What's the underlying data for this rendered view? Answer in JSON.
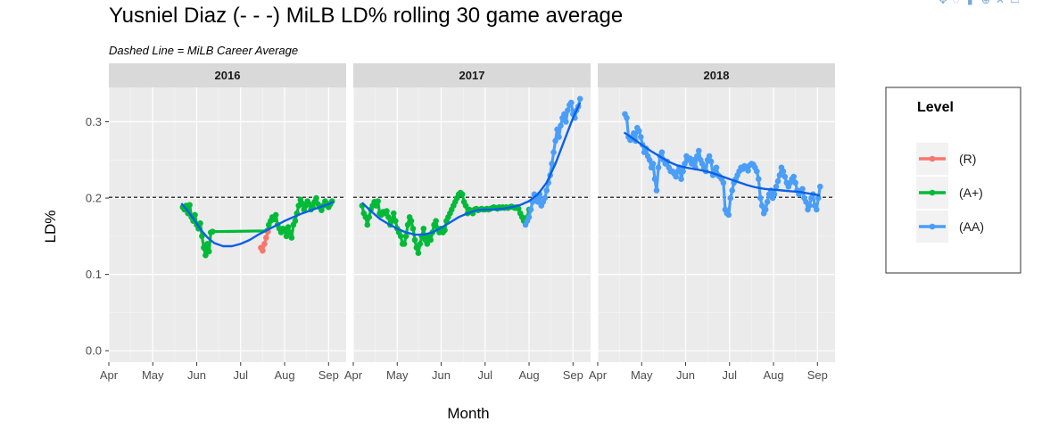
{
  "chart_data": {
    "type": "line",
    "title": "Yusniel Diaz (- - -) MiLB LD% rolling 30 game average",
    "subtitle": "Dashed Line = MiLB Career Average",
    "xlabel": "Month",
    "ylabel": "LD%",
    "ylim": [
      -0.015,
      0.345
    ],
    "yticks": [
      0.0,
      0.1,
      0.2,
      0.3
    ],
    "ytick_labels": [
      "0.0",
      "0.1",
      "0.2",
      "0.3"
    ],
    "xlim": [
      0,
      5.4
    ],
    "xticks": [
      0,
      1,
      2,
      3,
      4,
      5
    ],
    "xtick_labels": [
      "Apr",
      "May",
      "Jun",
      "Jul",
      "Aug",
      "Sep"
    ],
    "career_average": 0.201,
    "legend": {
      "title": "Level",
      "position": "right",
      "items": [
        {
          "label": "(R)",
          "color": "#F8766D"
        },
        {
          "label": "(A+)",
          "color": "#00BA38"
        },
        {
          "label": "(AA)",
          "color": "#4A9EF7"
        }
      ]
    },
    "smooth_color": "#0B5FE8",
    "panels": [
      {
        "label": "2016",
        "series": [
          {
            "name": "(A+)",
            "color": "#00BA38",
            "x": [
              1.68,
              1.72,
              1.76,
              1.8,
              1.84,
              1.88,
              1.92,
              1.96,
              2.0,
              2.04,
              2.08,
              2.12,
              2.16,
              2.2,
              2.24,
              2.28,
              2.32,
              2.36,
              3.6,
              3.64,
              3.68,
              3.72,
              3.76,
              3.8,
              3.84,
              3.88,
              3.92,
              3.96,
              4.0,
              4.04,
              4.08,
              4.12,
              4.16,
              4.2,
              4.24,
              4.28,
              4.32,
              4.36,
              4.4,
              4.44,
              4.48,
              4.52,
              4.56,
              4.6,
              4.64,
              4.68,
              4.72,
              4.76,
              4.8,
              4.84,
              4.88,
              4.92,
              4.96,
              5.0,
              5.04,
              5.08
            ],
            "y": [
              0.188,
              0.185,
              0.19,
              0.18,
              0.191,
              0.175,
              0.17,
              0.178,
              0.165,
              0.16,
              0.167,
              0.15,
              0.135,
              0.125,
              0.14,
              0.13,
              0.155,
              0.156,
              0.157,
              0.165,
              0.17,
              0.175,
              0.172,
              0.178,
              0.165,
              0.16,
              0.155,
              0.16,
              0.158,
              0.15,
              0.162,
              0.155,
              0.148,
              0.165,
              0.17,
              0.18,
              0.19,
              0.198,
              0.193,
              0.185,
              0.19,
              0.196,
              0.192,
              0.185,
              0.188,
              0.195,
              0.2,
              0.192,
              0.188,
              0.184,
              0.19,
              0.196,
              0.193,
              0.188,
              0.192,
              0.196
            ]
          },
          {
            "name": "(R)",
            "color": "#F8766D",
            "x": [
              3.46,
              3.5,
              3.54,
              3.58,
              3.62
            ],
            "y": [
              0.135,
              0.131,
              0.14,
              0.148,
              0.156
            ]
          }
        ],
        "smooth": {
          "x": [
            1.65,
            1.8,
            1.95,
            2.1,
            2.25,
            2.4,
            2.6,
            2.8,
            3.0,
            3.2,
            3.4,
            3.6,
            3.8,
            4.0,
            4.2,
            4.4,
            4.6,
            4.8,
            5.0,
            5.12
          ],
          "y": [
            0.193,
            0.183,
            0.171,
            0.158,
            0.148,
            0.141,
            0.137,
            0.137,
            0.14,
            0.145,
            0.152,
            0.158,
            0.164,
            0.17,
            0.175,
            0.18,
            0.184,
            0.188,
            0.192,
            0.195
          ]
        }
      },
      {
        "label": "2017",
        "series": [
          {
            "name": "(A+)",
            "color": "#00BA38",
            "x": [
              0.2,
              0.24,
              0.28,
              0.32,
              0.36,
              0.4,
              0.44,
              0.48,
              0.52,
              0.56,
              0.6,
              0.64,
              0.68,
              0.72,
              0.76,
              0.8,
              0.84,
              0.88,
              0.92,
              0.96,
              1.0,
              1.04,
              1.08,
              1.12,
              1.16,
              1.2,
              1.24,
              1.28,
              1.32,
              1.36,
              1.4,
              1.44,
              1.48,
              1.52,
              1.56,
              1.6,
              1.64,
              1.68,
              1.72,
              1.76,
              1.8,
              1.84,
              1.88,
              1.92,
              1.96,
              2.0,
              2.04,
              2.08,
              2.12,
              2.16,
              2.2,
              2.24,
              2.28,
              2.32,
              2.36,
              2.4,
              2.44,
              2.48,
              2.52,
              2.56,
              2.6,
              2.64,
              2.68,
              2.72,
              2.76,
              2.8,
              2.84,
              2.88,
              2.92,
              2.96,
              3.0,
              3.04,
              3.08,
              3.12,
              3.16,
              3.2,
              3.24,
              3.28,
              3.32,
              3.36,
              3.4,
              3.44,
              3.48,
              3.52,
              3.56,
              3.6,
              3.64,
              3.68,
              3.72,
              3.76,
              3.8,
              3.84,
              3.88,
              3.92,
              3.96,
              4.0
            ],
            "y": [
              0.19,
              0.18,
              0.175,
              0.165,
              0.175,
              0.185,
              0.19,
              0.195,
              0.19,
              0.196,
              0.18,
              0.178,
              0.182,
              0.18,
              0.183,
              0.175,
              0.165,
              0.17,
              0.18,
              0.17,
              0.16,
              0.155,
              0.15,
              0.14,
              0.14,
              0.15,
              0.165,
              0.175,
              0.17,
              0.16,
              0.145,
              0.135,
              0.128,
              0.14,
              0.15,
              0.16,
              0.145,
              0.14,
              0.15,
              0.145,
              0.155,
              0.165,
              0.17,
              0.16,
              0.155,
              0.16,
              0.155,
              0.158,
              0.17,
              0.175,
              0.18,
              0.185,
              0.19,
              0.195,
              0.2,
              0.205,
              0.207,
              0.205,
              0.195,
              0.19,
              0.18,
              0.185,
              0.183,
              0.18,
              0.185,
              0.186,
              0.184,
              0.185,
              0.186,
              0.185,
              0.185,
              0.186,
              0.185,
              0.186,
              0.187,
              0.188,
              0.187,
              0.186,
              0.188,
              0.187,
              0.188,
              0.187,
              0.188,
              0.187,
              0.188,
              0.189,
              0.188,
              0.187,
              0.188,
              0.186,
              0.18,
              0.175,
              0.17,
              0.172,
              0.175,
              0.185
            ]
          },
          {
            "name": "(AA)",
            "color": "#4A9EF7",
            "x": [
              3.92,
              3.96,
              4.0,
              4.04,
              4.08,
              4.12,
              4.16,
              4.2,
              4.24,
              4.28,
              4.32,
              4.36,
              4.4,
              4.44,
              4.48,
              4.52,
              4.56,
              4.6,
              4.64,
              4.68,
              4.72,
              4.76,
              4.8,
              4.84,
              4.88,
              4.92,
              4.96,
              5.0,
              5.04,
              5.08,
              5.12,
              5.16
            ],
            "y": [
              0.165,
              0.17,
              0.175,
              0.185,
              0.195,
              0.205,
              0.2,
              0.195,
              0.205,
              0.19,
              0.195,
              0.2,
              0.21,
              0.22,
              0.23,
              0.245,
              0.26,
              0.275,
              0.29,
              0.28,
              0.295,
              0.305,
              0.31,
              0.3,
              0.315,
              0.322,
              0.325,
              0.31,
              0.305,
              0.315,
              0.32,
              0.33
            ]
          }
        ],
        "smooth": {
          "x": [
            0.2,
            0.4,
            0.6,
            0.8,
            1.0,
            1.2,
            1.4,
            1.6,
            1.8,
            2.0,
            2.2,
            2.4,
            2.6,
            2.8,
            3.0,
            3.2,
            3.4,
            3.6,
            3.8,
            4.0,
            4.2,
            4.4,
            4.6,
            4.8,
            5.0,
            5.16
          ],
          "y": [
            0.194,
            0.183,
            0.173,
            0.166,
            0.16,
            0.155,
            0.152,
            0.152,
            0.155,
            0.161,
            0.168,
            0.175,
            0.18,
            0.184,
            0.185,
            0.185,
            0.186,
            0.188,
            0.191,
            0.196,
            0.205,
            0.22,
            0.245,
            0.275,
            0.305,
            0.325
          ]
        }
      },
      {
        "label": "2018",
        "series": [
          {
            "name": "(AA)",
            "color": "#4A9EF7",
            "x": [
              0.62,
              0.66,
              0.7,
              0.74,
              0.78,
              0.82,
              0.86,
              0.9,
              0.94,
              0.98,
              1.02,
              1.06,
              1.1,
              1.14,
              1.18,
              1.22,
              1.26,
              1.3,
              1.34,
              1.38,
              1.42,
              1.46,
              1.5,
              1.54,
              1.58,
              1.62,
              1.66,
              1.7,
              1.74,
              1.78,
              1.82,
              1.86,
              1.9,
              1.94,
              1.98,
              2.02,
              2.06,
              2.1,
              2.14,
              2.18,
              2.22,
              2.26,
              2.3,
              2.34,
              2.38,
              2.42,
              2.46,
              2.5,
              2.54,
              2.58,
              2.62,
              2.66,
              2.7,
              2.74,
              2.78,
              2.82,
              2.86,
              2.9,
              2.94,
              2.98,
              3.02,
              3.06,
              3.1,
              3.14,
              3.18,
              3.22,
              3.26,
              3.3,
              3.34,
              3.38,
              3.42,
              3.46,
              3.5,
              3.54,
              3.58,
              3.62,
              3.66,
              3.7,
              3.74,
              3.78,
              3.82,
              3.86,
              3.9,
              3.94,
              3.98,
              4.02,
              4.06,
              4.1,
              4.14,
              4.18,
              4.22,
              4.26,
              4.3,
              4.34,
              4.38,
              4.42,
              4.46,
              4.5,
              4.54,
              4.58,
              4.62,
              4.66,
              4.7,
              4.74,
              4.78,
              4.82,
              4.86,
              4.9,
              4.94,
              4.98,
              5.02,
              5.06
            ],
            "y": [
              0.31,
              0.305,
              0.28,
              0.276,
              0.28,
              0.285,
              0.275,
              0.292,
              0.288,
              0.28,
              0.27,
              0.26,
              0.265,
              0.255,
              0.25,
              0.24,
              0.245,
              0.225,
              0.21,
              0.24,
              0.255,
              0.26,
              0.25,
              0.245,
              0.248,
              0.24,
              0.235,
              0.235,
              0.232,
              0.228,
              0.235,
              0.24,
              0.225,
              0.235,
              0.245,
              0.255,
              0.25,
              0.252,
              0.245,
              0.25,
              0.24,
              0.255,
              0.262,
              0.25,
              0.245,
              0.24,
              0.235,
              0.25,
              0.255,
              0.248,
              0.23,
              0.235,
              0.24,
              0.23,
              0.228,
              0.225,
              0.22,
              0.185,
              0.18,
              0.178,
              0.2,
              0.21,
              0.22,
              0.225,
              0.23,
              0.235,
              0.24,
              0.238,
              0.242,
              0.24,
              0.236,
              0.243,
              0.245,
              0.244,
              0.24,
              0.235,
              0.225,
              0.2,
              0.19,
              0.18,
              0.185,
              0.195,
              0.205,
              0.21,
              0.2,
              0.205,
              0.215,
              0.222,
              0.23,
              0.24,
              0.235,
              0.228,
              0.22,
              0.215,
              0.22,
              0.225,
              0.228,
              0.22,
              0.21,
              0.205,
              0.21,
              0.212,
              0.2,
              0.195,
              0.185,
              0.19,
              0.2,
              0.205,
              0.19,
              0.185,
              0.2,
              0.215
            ]
          }
        ],
        "smooth": {
          "x": [
            0.6,
            0.8,
            1.0,
            1.2,
            1.4,
            1.6,
            1.8,
            2.0,
            2.2,
            2.4,
            2.6,
            2.8,
            3.0,
            3.2,
            3.4,
            3.6,
            3.8,
            4.0,
            4.2,
            4.4,
            4.6,
            4.8,
            5.0,
            5.06
          ],
          "y": [
            0.286,
            0.278,
            0.27,
            0.262,
            0.255,
            0.248,
            0.243,
            0.24,
            0.238,
            0.236,
            0.233,
            0.229,
            0.225,
            0.221,
            0.217,
            0.214,
            0.212,
            0.211,
            0.21,
            0.209,
            0.208,
            0.206,
            0.204,
            0.203
          ]
        }
      }
    ]
  }
}
